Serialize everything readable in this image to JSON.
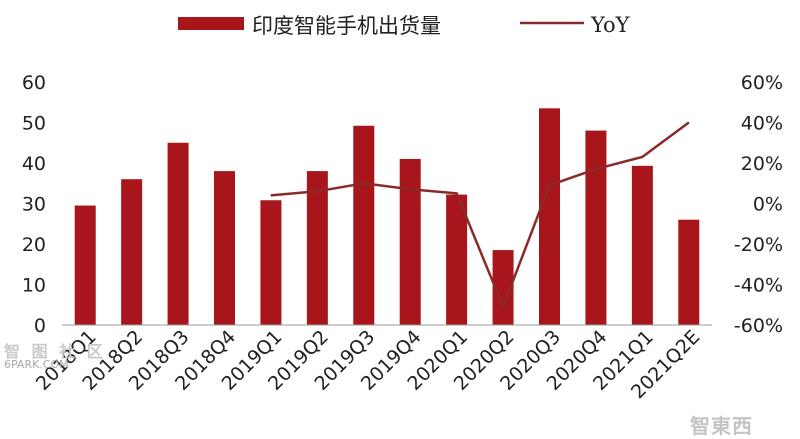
{
  "chart_data": {
    "type": "bar",
    "title": "",
    "xlabel": "",
    "ylabel": "",
    "categories": [
      "2018Q1",
      "2018Q2",
      "2018Q3",
      "2018Q4",
      "2019Q1",
      "2019Q2",
      "2019Q3",
      "2019Q4",
      "2020Q1",
      "2020Q2",
      "2020Q3",
      "2020Q4",
      "2021Q1",
      "2021Q2E"
    ],
    "series": [
      {
        "name": "印度智能手机出货量",
        "type": "bar",
        "axis": "left",
        "color": "#a8161c",
        "values": [
          29.5,
          36,
          45,
          38,
          30.8,
          38,
          49.2,
          41,
          32.2,
          18.5,
          53.5,
          48,
          39.3,
          26
        ]
      },
      {
        "name": "YoY",
        "type": "line",
        "axis": "right",
        "color": "#8a2a2a",
        "values": [
          null,
          null,
          null,
          null,
          4,
          6,
          10,
          7,
          5,
          -51,
          9,
          17,
          23,
          40
        ]
      }
    ],
    "y_left": {
      "min": 0,
      "max": 60,
      "ticks": [
        "0",
        "10",
        "20",
        "30",
        "40",
        "50",
        "60"
      ]
    },
    "y_right": {
      "min": -60,
      "max": 60,
      "ticks": [
        "-60%",
        "-40%",
        "-20%",
        "0%",
        "20%",
        "40%",
        "60%"
      ]
    },
    "grid": false,
    "legend": "top"
  },
  "watermarks": {
    "top_left": "智 图 社 区",
    "bottom_left": "6PARK.COM",
    "bottom_right": "智東西"
  }
}
